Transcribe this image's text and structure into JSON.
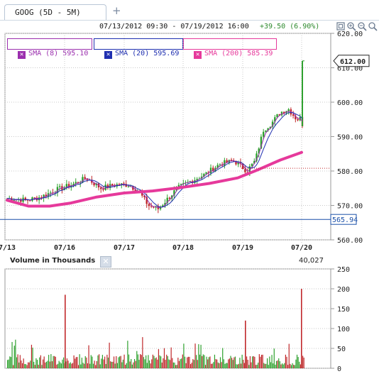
{
  "tab": {
    "label": "GOOG (5D - 5M)",
    "add_icon": "plus-icon"
  },
  "header": {
    "date_range": "07/13/2012 09:30 - 07/19/2012 16:00",
    "change": "+39.50 (6.90%)"
  },
  "toolbar": {
    "icons": [
      "maximize-icon",
      "zoom-in-icon",
      "zoom-out-icon",
      "zoom-reset-icon"
    ]
  },
  "legend": [
    {
      "label": "SMA (8) 595.10",
      "color": "#9b2fae"
    },
    {
      "label": "SMA (20) 595.69",
      "color": "#1f2fb0"
    },
    {
      "label": "SMA (200) 585.39",
      "color": "#e6399b"
    }
  ],
  "colors": {
    "up": "#2ea12e",
    "down": "#c0282b",
    "grid": "#c8c8c8",
    "axis": "#999999",
    "hline": "#1a4fa8"
  },
  "chart_data": [
    {
      "type": "candlestick",
      "title": "GOOG (5D - 5M)",
      "ylim": [
        560,
        620
      ],
      "yticks": [
        "560.00",
        "570.00",
        "580.00",
        "590.00",
        "600.00",
        "610.00",
        "620.00"
      ],
      "xticks": [
        "07/13",
        "07/16",
        "07/17",
        "07/18",
        "07/19",
        "07/20"
      ],
      "last_price_label": "612.00",
      "reference_line_label": "565.94",
      "reference_line_value": 565.94,
      "dotted_level": 580.8,
      "close_path": [
        [
          "07/13",
          572
        ],
        [
          "07/13",
          571.5
        ],
        [
          "07/13",
          572.5
        ],
        [
          "07/13",
          574.5
        ],
        [
          "07/16",
          576
        ],
        [
          "07/16",
          578
        ],
        [
          "07/16",
          575
        ],
        [
          "07/16",
          576
        ],
        [
          "07/17",
          576
        ],
        [
          "07/17",
          574
        ],
        [
          "07/17",
          570
        ],
        [
          "07/17",
          569
        ],
        [
          "07/17",
          572
        ],
        [
          "07/17",
          575
        ],
        [
          "07/18",
          577
        ],
        [
          "07/18",
          579
        ],
        [
          "07/18",
          582
        ],
        [
          "07/18",
          583
        ],
        [
          "07/19",
          580
        ],
        [
          "07/19",
          583
        ],
        [
          "07/19",
          592
        ],
        [
          "07/19",
          594
        ],
        [
          "07/19",
          597
        ],
        [
          "07/19",
          598
        ],
        [
          "07/19",
          595
        ],
        [
          "07/20",
          596
        ],
        [
          "07/20",
          594
        ],
        [
          "07/20",
          611
        ]
      ],
      "series": [
        {
          "name": "SMA (8)",
          "last": 595.1
        },
        {
          "name": "SMA (20)",
          "last": 595.69
        },
        {
          "name": "SMA (200)",
          "last": 585.39
        }
      ]
    },
    {
      "type": "bar",
      "title": "Volume in Thousands",
      "last_value": "40,027",
      "ylim": [
        0,
        250
      ],
      "yticks": [
        "0",
        "50",
        "100",
        "150",
        "200",
        "250"
      ],
      "spikes": [
        {
          "at": "07/16",
          "value": 185
        },
        {
          "at": "07/19",
          "value": 120
        },
        {
          "at": "07/20",
          "value": 200
        }
      ]
    }
  ]
}
